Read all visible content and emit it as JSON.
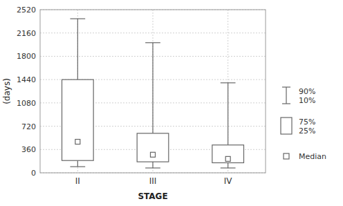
{
  "chart_data": {
    "type": "box",
    "categories": [
      "II",
      "III",
      "IV"
    ],
    "p10": [
      95,
      75,
      75
    ],
    "p25": [
      190,
      170,
      155
    ],
    "median": [
      480,
      280,
      215
    ],
    "p75": [
      1440,
      610,
      430
    ],
    "p90": [
      2380,
      2010,
      1390
    ],
    "xlabel": "STAGE",
    "ylabel": "(days)",
    "ylim": [
      0,
      2520
    ],
    "yticks": [
      0,
      360,
      720,
      1080,
      1440,
      1800,
      2160,
      2520
    ],
    "grid": true,
    "legend": "right",
    "legend_labels": [
      "90%\n10%",
      "75%\n25%",
      "Median"
    ],
    "color": "#666666"
  }
}
